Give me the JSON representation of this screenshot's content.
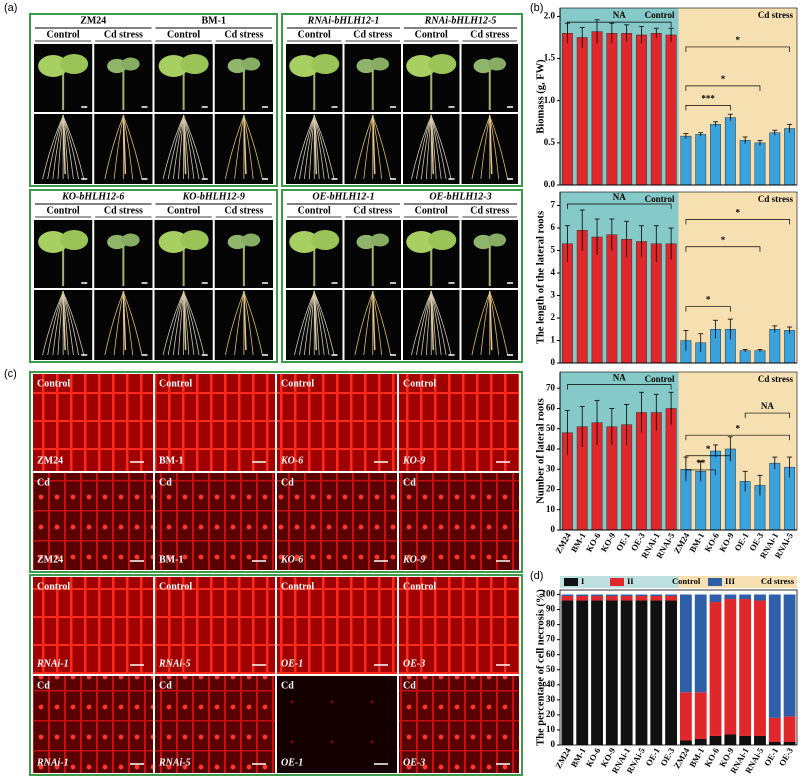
{
  "panel_labels": [
    "(a)",
    "(b)",
    "(c)",
    "(d)"
  ],
  "panel_a": {
    "groups": [
      {
        "genotypes": [
          {
            "name": "ZM24",
            "conditions": [
              "Control",
              "Cd stress"
            ]
          },
          {
            "name": "BM-1",
            "conditions": [
              "Control",
              "Cd stress"
            ]
          }
        ]
      },
      {
        "genotypes": [
          {
            "name": "RNAi-bHLH12-1",
            "conditions": [
              "Control",
              "Cd stress"
            ]
          },
          {
            "name": "RNAi-bHLH12-5",
            "conditions": [
              "Control",
              "Cd stress"
            ]
          }
        ]
      },
      {
        "genotypes": [
          {
            "name": "KO-bHLH12-6",
            "conditions": [
              "Control",
              "Cd stress"
            ]
          },
          {
            "name": "KO-bHLH12-9",
            "conditions": [
              "Control",
              "Cd stress"
            ]
          }
        ]
      },
      {
        "genotypes": [
          {
            "name": "OE-bHLH12-1",
            "conditions": [
              "Control",
              "Cd stress"
            ]
          },
          {
            "name": "OE-bHLH12-3",
            "conditions": [
              "Control",
              "Cd stress"
            ]
          }
        ]
      }
    ]
  },
  "panel_c": {
    "blocks": [
      {
        "images": [
          {
            "condition": "Control",
            "genotype": "ZM24"
          },
          {
            "condition": "Control",
            "genotype": "BM-1"
          },
          {
            "condition": "Control",
            "genotype": "KO-6"
          },
          {
            "condition": "Control",
            "genotype": "KO-9"
          },
          {
            "condition": "Cd",
            "genotype": "ZM24"
          },
          {
            "condition": "Cd",
            "genotype": "BM-1"
          },
          {
            "condition": "Cd",
            "genotype": "KO-6"
          },
          {
            "condition": "Cd",
            "genotype": "KO-9"
          }
        ]
      },
      {
        "images": [
          {
            "condition": "Control",
            "genotype": "RNAi-1"
          },
          {
            "condition": "Control",
            "genotype": "RNAi-5"
          },
          {
            "condition": "Control",
            "genotype": "OE-1"
          },
          {
            "condition": "Control",
            "genotype": "OE-3"
          },
          {
            "condition": "Cd",
            "genotype": "RNAi-1"
          },
          {
            "condition": "Cd",
            "genotype": "RNAi-5"
          },
          {
            "condition": "Cd",
            "genotype": "OE-1"
          },
          {
            "condition": "Cd",
            "genotype": "OE-3"
          }
        ]
      }
    ]
  },
  "chart_data": [
    {
      "type": "bar",
      "y_label": "Biomass (g, FW)",
      "ylim": [
        0,
        2.1
      ],
      "yticks": [
        {
          "value": 0,
          "label": "0.0"
        },
        0.5,
        {
          "value": 1,
          "label": "1.0"
        },
        1.5,
        {
          "value": 2,
          "label": "2.0"
        }
      ],
      "groups": [
        {
          "name": "Control",
          "color": "#e0282c",
          "background": "#86c9c9",
          "values": [
            1.8,
            1.75,
            1.82,
            1.8,
            1.8,
            1.78,
            1.8,
            1.78
          ],
          "errors": [
            0.12,
            0.12,
            0.14,
            0.12,
            0.1,
            0.1,
            0.06,
            0.08
          ]
        },
        {
          "name": "Cd stress",
          "color": "#3aa2dd",
          "background": "#f6e0b2",
          "values": [
            0.58,
            0.6,
            0.72,
            0.8,
            0.53,
            0.5,
            0.62,
            0.67
          ],
          "errors": [
            0.03,
            0.02,
            0.03,
            0.04,
            0.04,
            0.03,
            0.03,
            0.05
          ]
        }
      ],
      "annotations": [
        "NA",
        "*",
        "*",
        "***"
      ]
    },
    {
      "type": "bar",
      "y_label": "The length of the lateral roots",
      "ylim": [
        0,
        7.6
      ],
      "yticks": [
        0,
        1,
        2,
        3,
        4,
        5,
        6,
        7
      ],
      "groups": [
        {
          "name": "Control",
          "color": "#e0282c",
          "background": "#86c9c9",
          "values": [
            5.3,
            5.9,
            5.6,
            5.7,
            5.5,
            5.4,
            5.3,
            5.3
          ],
          "errors": [
            0.8,
            0.9,
            0.8,
            0.7,
            0.8,
            0.7,
            0.8,
            0.7
          ]
        },
        {
          "name": "Cd stress",
          "color": "#3aa2dd",
          "background": "#f6e0b2",
          "values": [
            1.0,
            0.9,
            1.5,
            1.5,
            0.55,
            0.55,
            1.5,
            1.45
          ],
          "errors": [
            0.45,
            0.4,
            0.4,
            0.45,
            0.05,
            0.05,
            0.15,
            0.15
          ]
        }
      ],
      "annotations": [
        "NA",
        "*",
        "*",
        "*"
      ]
    },
    {
      "type": "bar",
      "y_label": "Number of lateral roots",
      "ylim": [
        0,
        78
      ],
      "yticks": [
        0,
        10,
        20,
        30,
        40,
        50,
        60,
        70
      ],
      "groups": [
        {
          "name": "Control",
          "color": "#e0282c",
          "background": "#86c9c9",
          "categories": [
            "ZM24",
            "BM-1",
            "KO-6",
            "KO-9",
            "OE-1",
            "OE-3",
            "RNAi-1",
            "RNAi-5"
          ],
          "values": [
            48,
            51,
            53,
            51,
            52,
            58,
            58,
            60
          ],
          "errors": [
            11,
            10,
            11,
            9,
            10,
            10,
            9,
            8
          ]
        },
        {
          "name": "Cd stress",
          "color": "#3aa2dd",
          "background": "#f6e0b2",
          "categories": [
            "ZM24",
            "BM-1",
            "KO-6",
            "KO-9",
            "OE-1",
            "OE-3",
            "RNAi-1",
            "RNAi-5"
          ],
          "values": [
            30,
            29,
            39,
            40,
            24,
            22,
            33,
            31
          ],
          "errors": [
            6,
            5,
            3,
            6,
            5,
            5,
            3,
            5
          ]
        }
      ],
      "annotations": [
        "NA",
        "NA",
        "*",
        "*",
        "**"
      ]
    },
    {
      "type": "stacked_bar",
      "y_label": "The percentage of cell necrosis (%)",
      "ylim": [
        0,
        103
      ],
      "yticks": [
        0,
        10,
        20,
        30,
        40,
        50,
        60,
        70,
        80,
        90,
        100
      ],
      "region_labels": [
        "Control",
        "Cd stress"
      ],
      "categories": [
        "ZM24",
        "BM-1",
        "KO-6",
        "KO-9",
        "RNAi-1",
        "RNAi-5",
        "OE-1",
        "OE-3",
        "ZM24",
        "BM-1",
        "KO-6",
        "KO-9",
        "RNAi-1",
        "RNAi-5",
        "OE-1",
        "OE-3"
      ],
      "series": [
        {
          "name": "I",
          "color": "#111111",
          "values": [
            96,
            96,
            96,
            96,
            96,
            96,
            96,
            96,
            3,
            4,
            6,
            7,
            6,
            6,
            2,
            2
          ]
        },
        {
          "name": "II",
          "color": "#e0282c",
          "values": [
            3,
            3,
            3,
            3,
            3,
            3,
            3,
            3,
            32,
            31,
            89,
            90,
            91,
            90,
            16,
            17
          ]
        },
        {
          "name": "III",
          "color": "#2f5fa8",
          "values": [
            1,
            1,
            1,
            1,
            1,
            1,
            1,
            1,
            65,
            65,
            5,
            3,
            3,
            4,
            82,
            81
          ]
        }
      ]
    }
  ]
}
